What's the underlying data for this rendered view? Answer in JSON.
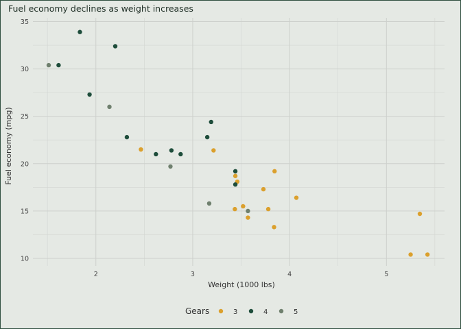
{
  "chart_data": {
    "type": "scatter",
    "title": "Fuel economy declines as weight increases",
    "xlabel": "Weight (1000 lbs)",
    "ylabel": "Fuel economy (mpg)",
    "xlim": [
      1.35,
      5.6
    ],
    "ylim": [
      9.2,
      35.4
    ],
    "xticks": [
      2,
      3,
      4,
      5
    ],
    "yticks": [
      10,
      15,
      20,
      25,
      30,
      35
    ],
    "grid": true,
    "legend_title": "Gears",
    "legend_position": "bottom",
    "series": [
      {
        "name": "3",
        "color": "#dba02d",
        "points": [
          [
            2.465,
            21.5
          ],
          [
            3.215,
            21.4
          ],
          [
            3.44,
            18.7
          ],
          [
            3.46,
            18.1
          ],
          [
            3.57,
            14.3
          ],
          [
            4.07,
            16.4
          ],
          [
            3.73,
            17.3
          ],
          [
            3.78,
            15.2
          ],
          [
            5.25,
            10.4
          ],
          [
            5.424,
            10.4
          ],
          [
            5.345,
            14.7
          ],
          [
            3.52,
            15.5
          ],
          [
            3.435,
            15.2
          ],
          [
            3.84,
            13.3
          ],
          [
            3.845,
            19.2
          ]
        ]
      },
      {
        "name": "4",
        "color": "#1e4d3b",
        "points": [
          [
            2.62,
            21.0
          ],
          [
            2.875,
            21.0
          ],
          [
            2.32,
            22.8
          ],
          [
            3.19,
            24.4
          ],
          [
            3.15,
            22.8
          ],
          [
            3.44,
            19.2
          ],
          [
            3.44,
            17.8
          ],
          [
            2.2,
            32.4
          ],
          [
            1.615,
            30.4
          ],
          [
            1.835,
            33.9
          ],
          [
            1.935,
            27.3
          ],
          [
            2.78,
            21.4
          ]
        ]
      },
      {
        "name": "5",
        "color": "#6f806e",
        "points": [
          [
            2.14,
            26.0
          ],
          [
            1.513,
            30.4
          ],
          [
            3.17,
            15.8
          ],
          [
            2.77,
            19.7
          ],
          [
            3.57,
            15.0
          ]
        ]
      }
    ]
  }
}
